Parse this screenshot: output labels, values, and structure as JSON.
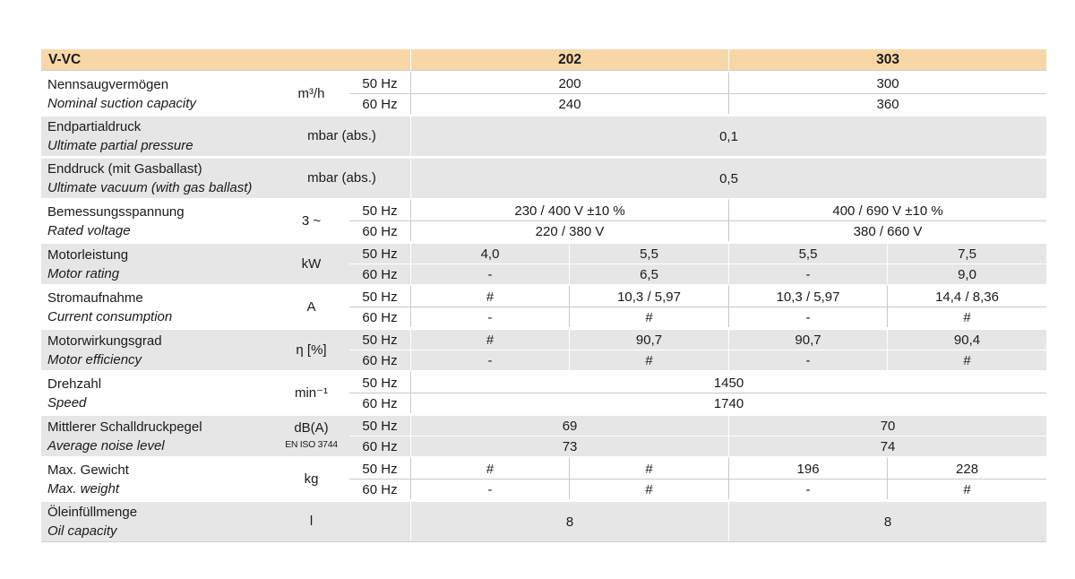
{
  "colors": {
    "header_bg": "#F8D7A6",
    "row_alt_bg": "#E6E6E6",
    "grid_line": "#C9C9C9",
    "text": "#1A1A1A"
  },
  "table": {
    "header": {
      "product": "V-VC",
      "models": [
        "202",
        "303"
      ]
    },
    "hz": {
      "h50": "50 Hz",
      "h60": "60 Hz"
    },
    "rows": [
      {
        "de": "Nennsaugvermögen",
        "en": "Nominal suction capacity",
        "unit": "m³/h",
        "v50": [
          "200",
          "300"
        ],
        "v60": [
          "240",
          "360"
        ]
      },
      {
        "de": "Endpartialdruck",
        "en": "Ultimate partial pressure",
        "unit": "mbar (abs.)",
        "value": "0,1"
      },
      {
        "de": "Enddruck (mit Gasballast)",
        "en": "Ultimate vacuum (with gas ballast)",
        "unit": "mbar (abs.)",
        "value": "0,5"
      },
      {
        "de": "Bemessungsspannung",
        "en": "Rated voltage",
        "unit": "3 ~",
        "v50": [
          "230 / 400 V ±10 %",
          "400 / 690 V ±10 %"
        ],
        "v60": [
          "220 / 380 V",
          "380 / 660 V"
        ]
      },
      {
        "de": "Motorleistung",
        "en": "Motor rating",
        "unit": "kW",
        "v50": [
          "4,0",
          "5,5",
          "5,5",
          "7,5"
        ],
        "v60": [
          "-",
          "6,5",
          "-",
          "9,0"
        ]
      },
      {
        "de": "Stromaufnahme",
        "en": "Current consumption",
        "unit": "A",
        "v50": [
          "#",
          "10,3 / 5,97",
          "10,3 / 5,97",
          "14,4 / 8,36"
        ],
        "v60": [
          "-",
          "#",
          "-",
          "#"
        ]
      },
      {
        "de": "Motorwirkungsgrad",
        "en": "Motor efficiency",
        "unit": "η [%]",
        "v50": [
          "#",
          "90,7",
          "90,7",
          "90,4"
        ],
        "v60": [
          "-",
          "#",
          "-",
          "#"
        ]
      },
      {
        "de": "Drehzahl",
        "en": "Speed",
        "unit": "min⁻¹",
        "v50": [
          "1450"
        ],
        "v60": [
          "1740"
        ]
      },
      {
        "de": "Mittlerer Schalldruckpegel",
        "en": "Average noise level",
        "unit": "dB(A)",
        "unit_sub": "EN ISO 3744",
        "v50": [
          "69",
          "70"
        ],
        "v60": [
          "73",
          "74"
        ]
      },
      {
        "de": "Max. Gewicht",
        "en": "Max. weight",
        "unit": "kg",
        "v50": [
          "#",
          "#",
          "196",
          "228"
        ],
        "v60": [
          "-",
          "#",
          "-",
          "#"
        ]
      },
      {
        "de": "Öleinfüllmenge",
        "en": "Oil capacity",
        "unit": "l",
        "values": [
          "8",
          "8"
        ]
      }
    ]
  }
}
